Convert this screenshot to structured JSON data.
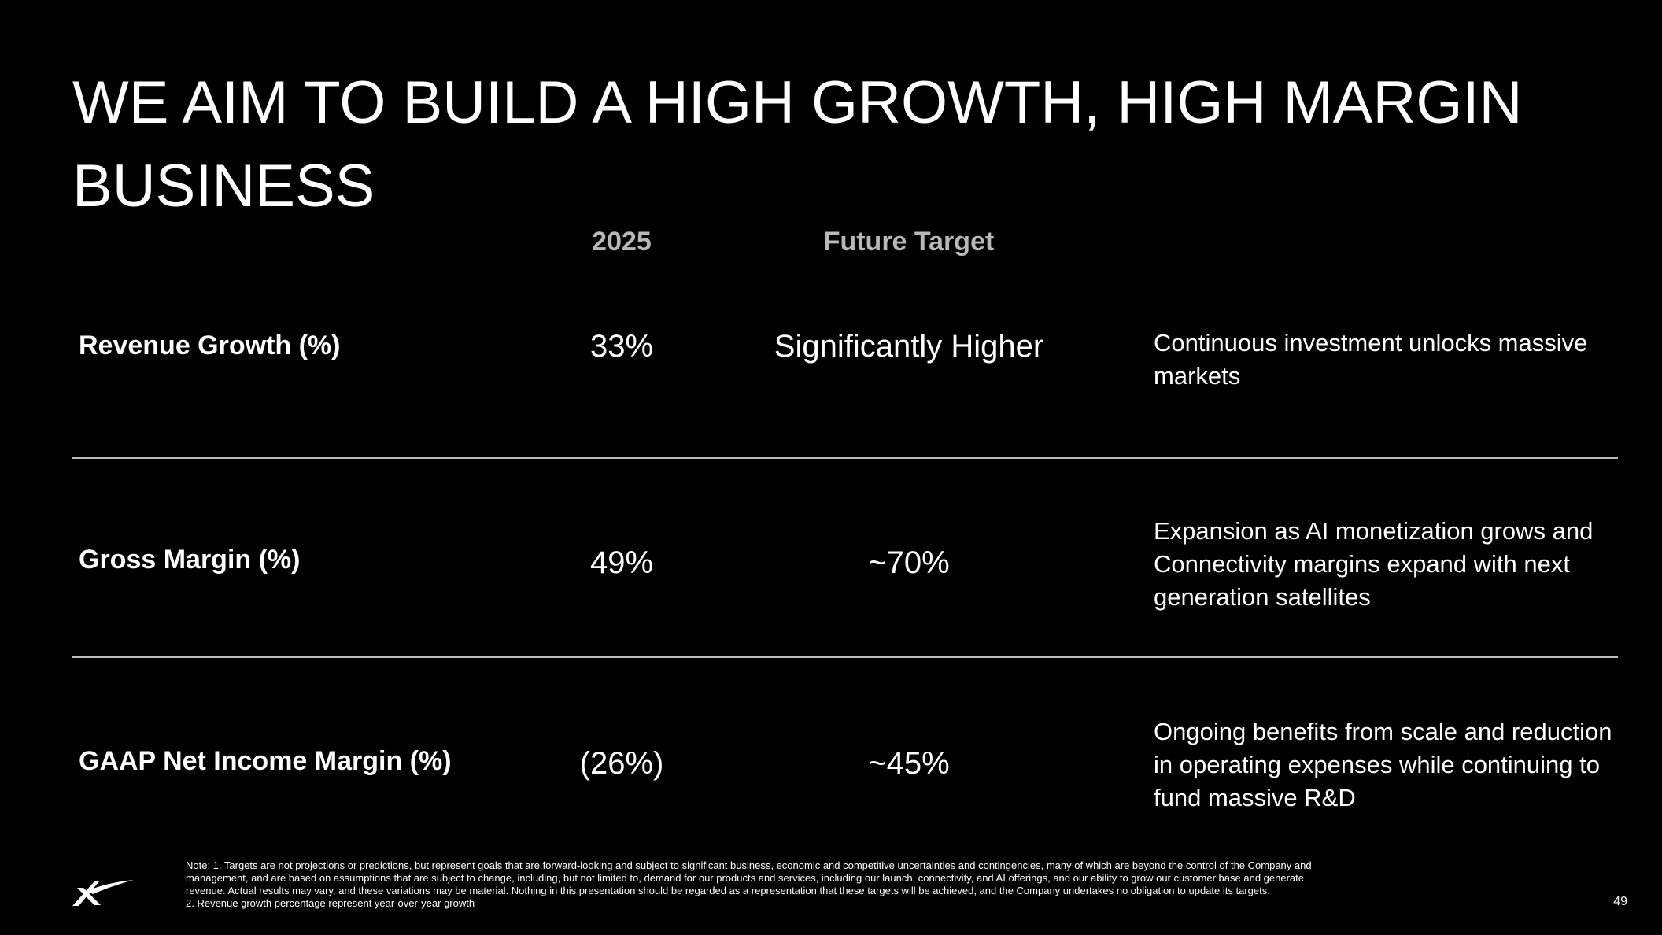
{
  "slide": {
    "title": "WE AIM TO BUILD A HIGH GROWTH, HIGH MARGIN BUSINESS",
    "page_number": "49"
  },
  "table": {
    "columns": {
      "year": "2025",
      "target": "Future Target"
    },
    "rows": [
      {
        "label": "Revenue Growth (%)",
        "value_2025": "33%",
        "future_target": "Significantly Higher",
        "description": "Continuous investment unlocks massive markets"
      },
      {
        "label": "Gross Margin (%)",
        "value_2025": "49%",
        "future_target": "~70%",
        "description": "Expansion as AI monetization grows and Connectivity margins expand with next generation satellites"
      },
      {
        "label": "GAAP Net Income Margin (%)",
        "value_2025": "(26%)",
        "future_target": "~45%",
        "description": "Ongoing benefits from scale and reduction in operating expenses while continuing to fund massive R&D"
      }
    ]
  },
  "footnotes": {
    "note1": "Note: 1. Targets are not projections or predictions, but represent goals that are forward-looking and subject to significant business, economic and competitive uncertainties and contingencies, many of which are beyond the control of the Company and management, and are based on assumptions that are subject to change, including, but not limited to, demand for our products and services, including our launch, connectivity, and AI offerings, and our ability to grow our customer base and generate revenue. Actual results may vary, and these variations may be material. Nothing in this presentation should be regarded as a representation that these targets will be achieved, and the Company undertakes no obligation to update its targets.",
    "note2": "2. Revenue growth percentage represent year-over-year growth"
  },
  "logo": {
    "icon": "x-logo-icon"
  }
}
